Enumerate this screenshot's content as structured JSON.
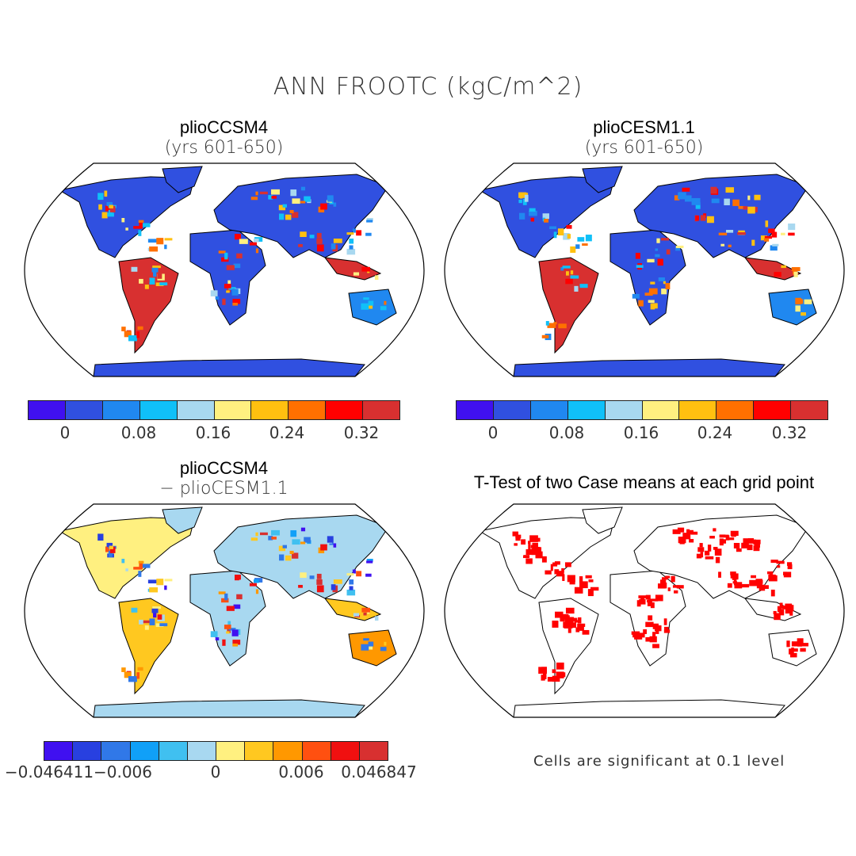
{
  "title": "ANN FROOTC (kgC/m^2)",
  "panels": [
    {
      "title": "plioCCSM4",
      "subtitle": "(yrs 601-650)"
    },
    {
      "title": "plioCESM1.1",
      "subtitle": "(yrs 601-650)"
    },
    {
      "title": "plioCCSM4",
      "subtitle": "− plioCESM1.1"
    },
    {
      "title": "T-Test of two Case means at each grid point",
      "note": "Cells are significant at 0.1 level"
    }
  ],
  "colorbar_main": {
    "colors": [
      "#4010f0",
      "#3050e0",
      "#2088f0",
      "#10c0f8",
      "#a8d8f0",
      "#fff080",
      "#ffc010",
      "#ff7000",
      "#ff0000",
      "#d83030"
    ],
    "labels": [
      "0",
      "0.08",
      "0.16",
      "0.24",
      "0.32"
    ]
  },
  "colorbar_diff": {
    "colors": [
      "#4010f0",
      "#2840e0",
      "#3078e8",
      "#10a0f8",
      "#40c0f0",
      "#a8d8f0",
      "#fff080",
      "#ffc820",
      "#ff9800",
      "#ff5010",
      "#f01010",
      "#d83030"
    ],
    "labels": [
      "−0.046411",
      "−0.006",
      "0",
      "0.006",
      "0.046847"
    ]
  },
  "significance_color": "#ff0000"
}
